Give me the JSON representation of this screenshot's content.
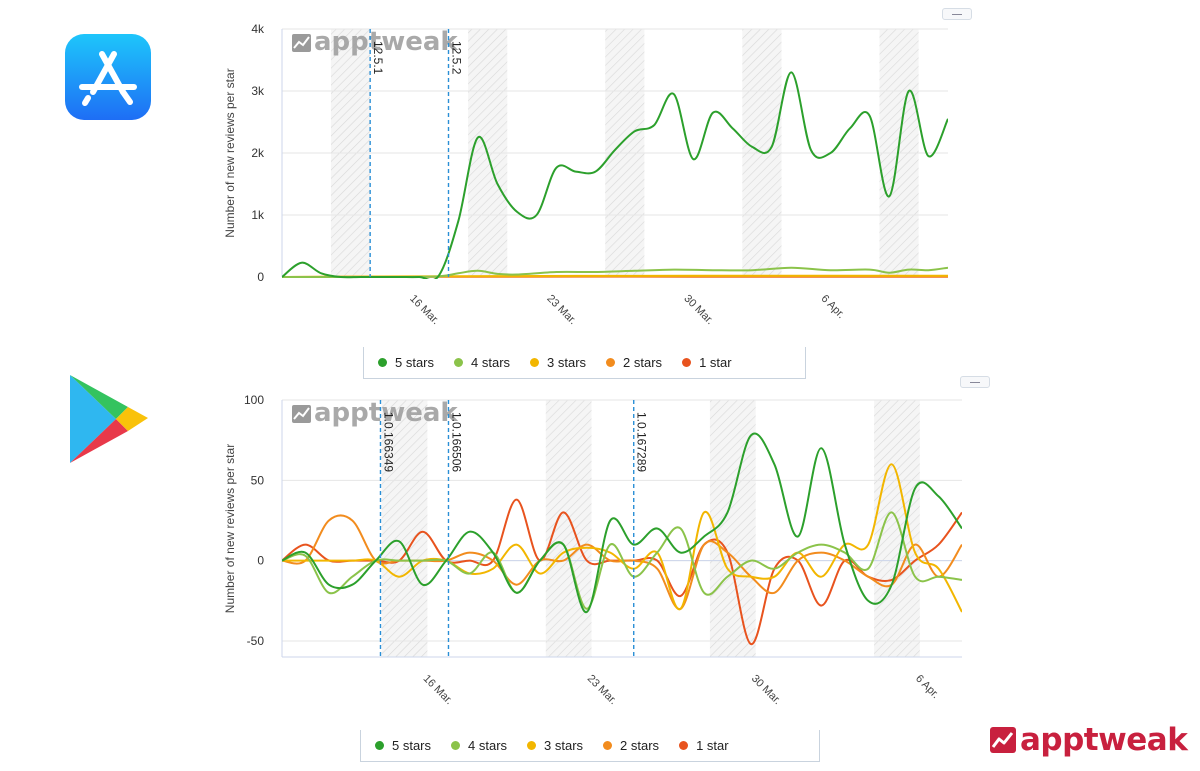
{
  "brand": {
    "name": "apptweak"
  },
  "stores": {
    "top": "app-store",
    "bottom": "google-play"
  },
  "chart_data": [
    {
      "type": "line",
      "store": "App Store",
      "watermark": "apptweak",
      "ylabel": "Number of new reviews per star",
      "ylim": [
        0,
        4000
      ],
      "yticks": [
        0,
        1000,
        2000,
        3000,
        4000
      ],
      "yticklabels": [
        "0",
        "1k",
        "2k",
        "3k",
        "4k"
      ],
      "xlim": [
        9.5,
        43.5
      ],
      "xticks": [
        16,
        23,
        30,
        37
      ],
      "xticklabels": [
        "16 Mar.",
        "23 Mar.",
        "30 Mar.",
        "6 Apr."
      ],
      "weekend_bands": [
        [
          12,
          14
        ],
        [
          19,
          21
        ],
        [
          26,
          28
        ],
        [
          33,
          35
        ],
        [
          40,
          42
        ]
      ],
      "version_markers": [
        {
          "x": 14,
          "label": "12.5.1"
        },
        {
          "x": 18,
          "label": "12.5.2"
        }
      ],
      "series": [
        {
          "name": "5 stars",
          "color": "#2ca02c",
          "x": [
            9.5,
            10.5,
            11.5,
            12.5,
            13.5,
            14.5,
            15.5,
            16.5,
            17.5,
            18.5,
            19.5,
            20.5,
            21.5,
            22.5,
            23.5,
            24.5,
            25.5,
            26.5,
            27.5,
            28.5,
            29.5,
            30.5,
            31.5,
            32.5,
            33.5,
            34.5,
            35.5,
            36.5,
            37.5,
            38.5,
            39.5,
            40.5,
            41.5,
            42.5,
            43.5
          ],
          "values": [
            0,
            230,
            60,
            0,
            0,
            0,
            0,
            0,
            20,
            900,
            2250,
            1500,
            1050,
            1000,
            1760,
            1700,
            1700,
            2050,
            2350,
            2450,
            2950,
            1900,
            2650,
            2400,
            2100,
            2100,
            3300,
            2050,
            2000,
            2400,
            2600,
            1300,
            3000,
            1950,
            2550
          ]
        },
        {
          "name": "4 stars",
          "color": "#8bc34a",
          "x": [
            9.5,
            13.5,
            15.5,
            17.5,
            18.5,
            19.5,
            20.5,
            21.5,
            23.5,
            25.5,
            27.5,
            29.5,
            31.5,
            33.5,
            35.5,
            37.5,
            39.5,
            40.5,
            41.5,
            42.5,
            43.5
          ],
          "values": [
            0,
            0,
            0,
            10,
            60,
            100,
            50,
            40,
            80,
            80,
            100,
            120,
            110,
            110,
            150,
            110,
            120,
            70,
            120,
            110,
            150
          ]
        },
        {
          "name": "3 stars",
          "color": "#f2b600",
          "x": [
            9.5,
            20.5,
            30.5,
            43.5
          ],
          "values": [
            0,
            15,
            20,
            20
          ]
        },
        {
          "name": "2 stars",
          "color": "#f28c1e",
          "x": [
            9.5,
            20.5,
            30.5,
            43.5
          ],
          "values": [
            0,
            8,
            10,
            10
          ]
        },
        {
          "name": "1 star",
          "color": "#e8531e",
          "x": [
            9.5,
            20.5,
            30.5,
            43.5
          ],
          "values": [
            0,
            5,
            5,
            5
          ]
        }
      ]
    },
    {
      "type": "line",
      "store": "Google Play",
      "watermark": "apptweak",
      "ylabel": "Number of new reviews per star",
      "ylim": [
        -60,
        100
      ],
      "yticks": [
        -50,
        0,
        50,
        100
      ],
      "yticklabels": [
        "-50",
        "0",
        "50",
        "100"
      ],
      "xlim": [
        10,
        39
      ],
      "xticks": [
        16,
        23,
        30,
        37
      ],
      "xticklabels": [
        "16 Mar.",
        "23 Mar.",
        "30 Mar.",
        "6 Apr."
      ],
      "weekend_bands": [
        [
          14.25,
          16.2
        ],
        [
          21.25,
          23.2
        ],
        [
          28.25,
          30.2
        ],
        [
          35.25,
          37.2
        ]
      ],
      "version_markers": [
        {
          "x": 14.2,
          "label": "1.0.166349"
        },
        {
          "x": 17.1,
          "label": "1.0.166506"
        },
        {
          "x": 25,
          "label": "1.0.167289"
        }
      ],
      "series": [
        {
          "name": "5 stars",
          "color": "#2ca02c",
          "x": [
            10,
            11,
            12,
            13,
            14,
            15,
            16,
            17,
            18,
            19,
            20,
            21,
            22,
            23,
            24,
            25,
            26,
            27,
            28,
            29,
            30,
            31,
            32,
            33,
            34,
            35,
            36,
            37,
            38,
            39
          ],
          "values": [
            0,
            5,
            -15,
            -15,
            0,
            12,
            -15,
            0,
            18,
            5,
            -20,
            0,
            10,
            -32,
            25,
            10,
            20,
            5,
            15,
            30,
            78,
            60,
            15,
            70,
            10,
            -25,
            -15,
            45,
            40,
            20
          ]
        },
        {
          "name": "4 stars",
          "color": "#8bc34a",
          "x": [
            10,
            11,
            12,
            13,
            14,
            15,
            16,
            17,
            18,
            19,
            20,
            21,
            22,
            23,
            24,
            25,
            26,
            27,
            28,
            29,
            30,
            31,
            32,
            33,
            34,
            35,
            36,
            37,
            38,
            39
          ],
          "values": [
            0,
            3,
            -20,
            -10,
            0,
            0,
            0,
            0,
            -8,
            5,
            -20,
            0,
            10,
            -30,
            10,
            -10,
            5,
            20,
            -20,
            -10,
            0,
            -5,
            5,
            10,
            5,
            -5,
            30,
            -10,
            -10,
            -12
          ]
        },
        {
          "name": "3 stars",
          "color": "#f2b600",
          "x": [
            10,
            11,
            12,
            13,
            14,
            15,
            16,
            17,
            18,
            19,
            20,
            21,
            22,
            23,
            24,
            25,
            26,
            27,
            28,
            29,
            30,
            31,
            32,
            33,
            34,
            35,
            36,
            37,
            38,
            39
          ],
          "values": [
            0,
            0,
            0,
            0,
            0,
            -10,
            0,
            0,
            -8,
            -5,
            10,
            -8,
            5,
            8,
            5,
            -5,
            5,
            -30,
            30,
            -5,
            -10,
            -10,
            5,
            -10,
            10,
            10,
            60,
            5,
            -5,
            -32
          ]
        },
        {
          "name": "2 stars",
          "color": "#f28c1e",
          "x": [
            10,
            11,
            12,
            13,
            14,
            15,
            16,
            17,
            18,
            19,
            20,
            21,
            22,
            23,
            24,
            25,
            26,
            27,
            28,
            29,
            30,
            31,
            32,
            33,
            34,
            35,
            36,
            37,
            38,
            39
          ],
          "values": [
            0,
            0,
            25,
            25,
            0,
            0,
            0,
            0,
            5,
            0,
            -15,
            0,
            0,
            10,
            0,
            0,
            -5,
            -30,
            10,
            5,
            -10,
            -20,
            0,
            5,
            0,
            -10,
            -15,
            10,
            -10,
            10
          ]
        },
        {
          "name": "1 star",
          "color": "#e8531e",
          "x": [
            10,
            11,
            12,
            13,
            14,
            15,
            16,
            17,
            18,
            19,
            20,
            21,
            22,
            23,
            24,
            25,
            26,
            27,
            28,
            29,
            30,
            31,
            32,
            33,
            34,
            35,
            36,
            37,
            38,
            39
          ],
          "values": [
            0,
            10,
            0,
            0,
            0,
            0,
            18,
            0,
            0,
            0,
            38,
            0,
            30,
            0,
            0,
            0,
            0,
            -22,
            10,
            5,
            -52,
            -5,
            0,
            -28,
            0,
            -10,
            -12,
            0,
            10,
            30
          ]
        }
      ]
    }
  ],
  "legend": [
    "5 stars",
    "4 stars",
    "3 stars",
    "2 stars",
    "1 star"
  ]
}
